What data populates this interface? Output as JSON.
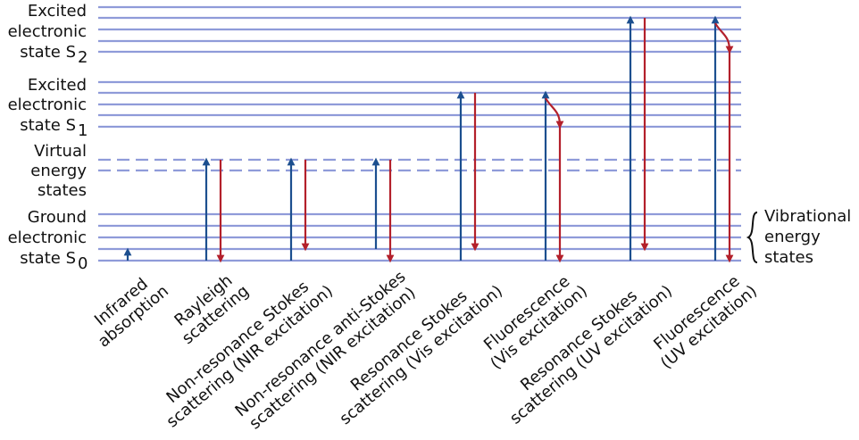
{
  "states": [
    {
      "lines": [
        "Excited",
        "electronic",
        "state S"
      ],
      "subscript": "2"
    },
    {
      "lines": [
        "Excited",
        "electronic",
        "state S"
      ],
      "subscript": "1"
    },
    {
      "lines": [
        "Virtual",
        "energy",
        "states"
      ]
    },
    {
      "lines": [
        "Ground",
        "electronic",
        "state S"
      ],
      "subscript": "0"
    }
  ],
  "processes": [
    {
      "lines": [
        "Infrared",
        "absorption"
      ]
    },
    {
      "lines": [
        "Rayleigh",
        "scattering"
      ]
    },
    {
      "lines": [
        "Non-resonance Stokes",
        "scattering (NIR excitation)"
      ]
    },
    {
      "lines": [
        "Non-resonance anti-Stokes",
        "scattering (NIR excitation)"
      ]
    },
    {
      "lines": [
        "Resonance Stokes",
        "scattering (Vis excitation)"
      ]
    },
    {
      "lines": [
        "Fluorescence",
        "(Vis excitation)"
      ]
    },
    {
      "lines": [
        "Resonance Stokes",
        "scattering (UV excitation)"
      ]
    },
    {
      "lines": [
        "Fluorescence",
        "(UV excitation)"
      ]
    }
  ],
  "brace_label": {
    "lines": [
      "Vibrational",
      "energy",
      "states"
    ]
  }
}
